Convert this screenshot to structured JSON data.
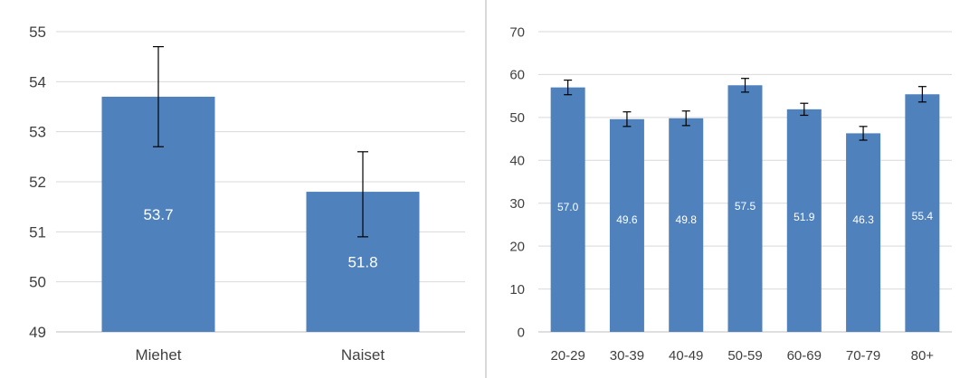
{
  "chart_data": [
    {
      "type": "bar",
      "categories": [
        "Miehet",
        "Naiset"
      ],
      "values": [
        53.7,
        51.8
      ],
      "data_labels": [
        "53.7",
        "51.8"
      ],
      "error_bars": [
        [
          52.7,
          54.7
        ],
        [
          50.9,
          52.6
        ]
      ],
      "ylim": [
        49,
        55
      ],
      "yticks": [
        49,
        50,
        51,
        52,
        53,
        54,
        55
      ],
      "grid": true,
      "bar_color": "#4f81bd"
    },
    {
      "type": "bar",
      "categories": [
        "20-29",
        "30-39",
        "40-49",
        "50-59",
        "60-69",
        "70-79",
        "80+"
      ],
      "values": [
        57.0,
        49.6,
        49.8,
        57.5,
        51.9,
        46.3,
        55.4
      ],
      "data_labels": [
        "57.0",
        "49.6",
        "49.8",
        "57.5",
        "51.9",
        "46.3",
        "55.4"
      ],
      "error_bars": [
        [
          55.3,
          58.7
        ],
        [
          47.9,
          51.3
        ],
        [
          48.1,
          51.5
        ],
        [
          55.9,
          59.1
        ],
        [
          50.5,
          53.3
        ],
        [
          44.7,
          47.9
        ],
        [
          53.6,
          57.2
        ]
      ],
      "ylim": [
        0,
        70
      ],
      "yticks": [
        0,
        10,
        20,
        30,
        40,
        50,
        60,
        70
      ],
      "grid": true,
      "bar_color": "#4f81bd"
    }
  ]
}
